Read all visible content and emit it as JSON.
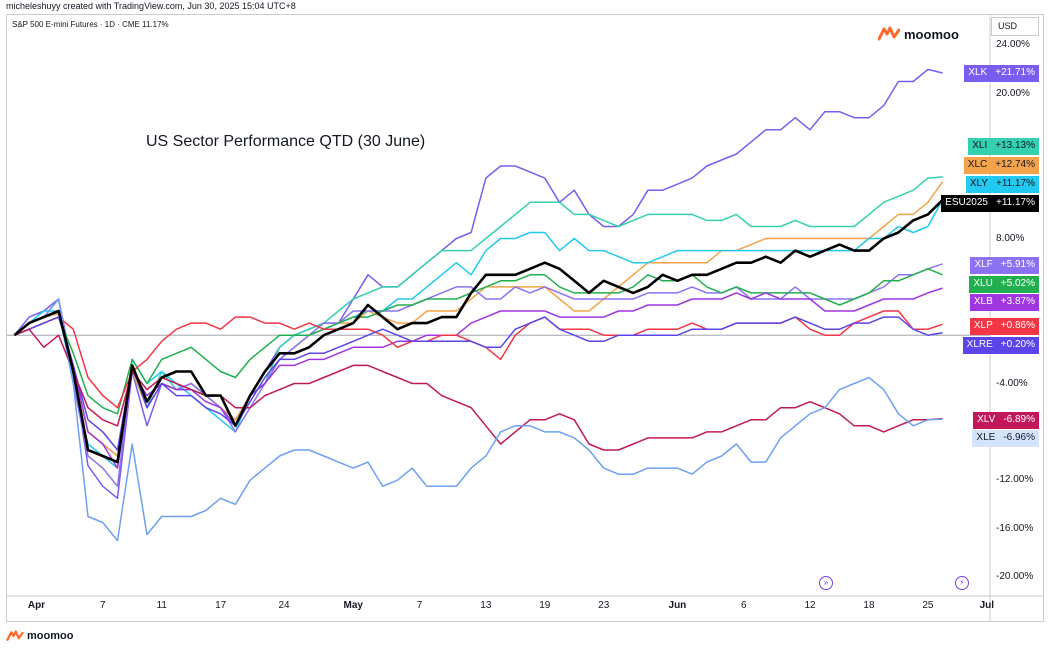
{
  "header": {
    "credit": "micheleshuyy created with TradingView.com, Jun 30, 2025 15:04 UTC+8",
    "symbol_info": "S&P 500 E-mini Futures · 1D · CME  11.17%",
    "currency": "USD"
  },
  "brand": {
    "name": "moomoo"
  },
  "icons": {
    "brand_logo": "moomoo-logo-icon",
    "replay": "replay-icon",
    "lightning": "lightning-icon"
  },
  "chart_data": {
    "type": "line",
    "title": "US Sector Performance QTD (30 June)",
    "ylabel": "",
    "xlabel": "",
    "ylim": [
      -21.5,
      26.5
    ],
    "xlim": [
      -0.5,
      63.5
    ],
    "baseline": 0,
    "y_ticks": [
      "24.00%",
      "20.00%",
      "8.00%",
      "-4.00%",
      "-12.00%",
      "-16.00%",
      "-20.00%"
    ],
    "y_tick_values": [
      24,
      20,
      8,
      -4,
      -12,
      -16,
      -20
    ],
    "x_tick_labels": [
      "Apr",
      "7",
      "11",
      "17",
      "24",
      "May",
      "7",
      "13",
      "19",
      "23",
      "Jun",
      "6",
      "12",
      "18",
      "25",
      "Jul"
    ],
    "x_tick_index": [
      1.5,
      6,
      10,
      14,
      18.3,
      23,
      27.5,
      32,
      36,
      40,
      45,
      49.5,
      54,
      58,
      62,
      66
    ],
    "x_tick_bold": [
      true,
      false,
      false,
      false,
      false,
      true,
      false,
      false,
      false,
      false,
      true,
      false,
      false,
      false,
      false,
      true
    ],
    "series": [
      {
        "name": "XLK",
        "color": "#7b5cf0",
        "label_color": "#7b5cf0",
        "value_label": "+21.71%",
        "label_text_color": "#ffffff",
        "values": [
          0,
          1.5,
          2,
          3,
          -3,
          -10.8,
          -12.5,
          -13.5,
          -3,
          -7.5,
          -4,
          -4.5,
          -4,
          -5,
          -6,
          -7.5,
          -5,
          -3,
          -1,
          0,
          0.5,
          1,
          1,
          3,
          5,
          4,
          4,
          5,
          6,
          7,
          8,
          8.5,
          13,
          14,
          14,
          13.5,
          13,
          11,
          12,
          10,
          9,
          9,
          10,
          12,
          12,
          12.5,
          13,
          14,
          14.5,
          15,
          16,
          17,
          17,
          18,
          17,
          18.5,
          18.5,
          18,
          18,
          19,
          21,
          21,
          22,
          21.7
        ]
      },
      {
        "name": "XLI",
        "color": "#33d1b0",
        "label_color": "#33d1b0",
        "value_label": "+13.13%",
        "label_text_color": "#131722",
        "values": [
          0,
          1,
          1.5,
          1.8,
          -3,
          -8,
          -9,
          -10,
          -3,
          -6,
          -3,
          -4.5,
          -4.5,
          -5,
          -6,
          -7,
          -5,
          -4,
          -1,
          0,
          0.5,
          1,
          2,
          3,
          3.5,
          4,
          4,
          5,
          6,
          7,
          7,
          7,
          8,
          9,
          10,
          11,
          11,
          11,
          10,
          10,
          9.5,
          9,
          9.5,
          10,
          10,
          10,
          10,
          9.5,
          9.5,
          10,
          9,
          9,
          9,
          9.5,
          9,
          9,
          9,
          9,
          10,
          11,
          11.5,
          12,
          13,
          13.1
        ]
      },
      {
        "name": "XLC",
        "color": "#f5a34a",
        "label_color": "#f5a34a",
        "value_label": "+12.74%",
        "label_text_color": "#131722",
        "values": [
          0,
          1,
          1.5,
          1.8,
          -3,
          -8,
          -9,
          -10,
          -3,
          -6,
          -4,
          -4.5,
          -4,
          -5,
          -6,
          -7,
          -5,
          -4,
          -2,
          -1,
          0,
          0.5,
          1,
          1,
          2,
          1.5,
          1,
          1,
          2,
          2,
          2,
          3,
          4,
          4,
          4,
          4,
          4,
          3,
          2,
          2,
          3,
          4,
          5,
          6,
          6,
          6,
          6,
          6,
          7,
          7,
          7.5,
          8,
          8,
          8,
          8,
          8,
          8,
          8,
          8,
          9,
          10,
          10,
          11,
          12.7
        ]
      },
      {
        "name": "XLY",
        "color": "#22c9f0",
        "label_color": "#22c9f0",
        "value_label": "+11.17%",
        "label_text_color": "#131722",
        "values": [
          0,
          1,
          2,
          2,
          -4,
          -9,
          -10,
          -11,
          -2,
          -4,
          -3,
          -4,
          -5,
          -6,
          -7,
          -8,
          -5,
          -4,
          -2,
          -1,
          0,
          0.5,
          1,
          1.5,
          2,
          2,
          3,
          3,
          4,
          5,
          6,
          5,
          7,
          8,
          8,
          8.5,
          8.5,
          7,
          8,
          7,
          7,
          6.5,
          6,
          6,
          6.5,
          7,
          7,
          7,
          7,
          7,
          7,
          7,
          7,
          7,
          7,
          7,
          7,
          7,
          8,
          8,
          9,
          8.5,
          9,
          11.2
        ]
      },
      {
        "name": "ESU2025",
        "color": "#000000",
        "label_color": "#000000",
        "value_label": "+11.17%",
        "label_text_color": "#ffffff",
        "values": [
          0,
          1,
          1.5,
          2,
          -3,
          -9.5,
          -10,
          -10.5,
          -2.5,
          -5.5,
          -3.5,
          -3,
          -3,
          -5,
          -5,
          -7.5,
          -5,
          -3,
          -1.5,
          -1.5,
          -1,
          0,
          0.5,
          1,
          2.5,
          1.5,
          0.5,
          1,
          1,
          1.5,
          1.5,
          3.5,
          5,
          5,
          5,
          5.5,
          6,
          5.5,
          4.5,
          3.5,
          4.5,
          4,
          3.5,
          4,
          5,
          4.5,
          5,
          5,
          5.5,
          6,
          6,
          6.5,
          6,
          7,
          6.5,
          7,
          7.5,
          7,
          7,
          8,
          8.5,
          9.5,
          10,
          11.2
        ]
      },
      {
        "name": "XLF",
        "color": "#8c72f2",
        "label_color": "#8c72f2",
        "value_label": "+5.91%",
        "label_text_color": "#ffffff",
        "values": [
          0,
          1,
          1.5,
          3,
          -4,
          -10,
          -11,
          -12.5,
          -2.5,
          -6,
          -4,
          -4.5,
          -4,
          -5,
          -6,
          -8,
          -6,
          -4,
          -2,
          -1,
          0,
          1,
          1,
          2,
          2,
          2,
          2,
          2.5,
          3,
          3.5,
          4,
          4,
          3,
          3,
          4,
          3.5,
          4,
          3.5,
          3,
          3,
          3,
          3,
          3,
          3.5,
          3.5,
          3.5,
          4,
          3.5,
          3.5,
          4,
          3,
          3,
          3,
          4,
          3,
          3,
          3,
          3,
          3.5,
          4,
          5,
          5,
          5.5,
          5.9
        ]
      },
      {
        "name": "XLU",
        "color": "#22b04e",
        "label_color": "#22b04e",
        "value_label": "+5.02%",
        "label_text_color": "#ffffff",
        "values": [
          0,
          0.5,
          1,
          1.5,
          -1.5,
          -5,
          -6,
          -6.5,
          -2,
          -4,
          -2,
          -1.5,
          -1,
          -2,
          -3,
          -3.5,
          -2,
          -1,
          0,
          0,
          0,
          0.5,
          1,
          1.5,
          1.5,
          2,
          2.5,
          2.5,
          3,
          3,
          3,
          3.5,
          4,
          4.5,
          4.5,
          5,
          5,
          4,
          3.5,
          3.5,
          3.5,
          3.5,
          4,
          5,
          4.5,
          4.5,
          5,
          4,
          3.5,
          4,
          3.5,
          3.5,
          3.5,
          3.5,
          3.5,
          3,
          2.5,
          3,
          3.5,
          4.5,
          4.5,
          5,
          5.5,
          5
        ]
      },
      {
        "name": "XLB",
        "color": "#9f36e0",
        "label_color": "#9f36e0",
        "value_label": "+3.87%",
        "label_text_color": "#ffffff",
        "values": [
          0,
          1,
          1.5,
          2,
          -2.5,
          -8,
          -9,
          -11,
          -3,
          -5,
          -4,
          -4.5,
          -4.5,
          -5.5,
          -6,
          -7.5,
          -5,
          -4,
          -2.5,
          -2.5,
          -2,
          -2,
          -1.5,
          -1,
          -1,
          -1,
          -0.5,
          -0.5,
          0,
          0,
          0,
          1,
          1.5,
          2,
          2,
          2,
          2,
          1.5,
          1.5,
          1.5,
          1.5,
          2,
          2,
          2.5,
          2.5,
          2.5,
          3,
          3,
          3,
          3.5,
          3,
          3.5,
          3,
          3,
          3,
          2,
          2,
          2,
          2.5,
          3,
          3,
          3,
          3.5,
          3.9
        ]
      },
      {
        "name": "XLP",
        "color": "#f23645",
        "label_color": "#f23645",
        "value_label": "+0.86%",
        "label_text_color": "#ffffff",
        "values": [
          0,
          0.5,
          1,
          1.5,
          0.5,
          -3.5,
          -5,
          -6,
          -3,
          -2,
          -0.5,
          0.5,
          1,
          1,
          0.5,
          1.5,
          1.5,
          1,
          1,
          0.5,
          1,
          0.5,
          0.5,
          0.5,
          0.5,
          0,
          -1,
          -0.5,
          -0.5,
          0,
          0,
          -0.5,
          -1,
          -2,
          0,
          1,
          1.5,
          0.5,
          0.5,
          0.5,
          0,
          0,
          0,
          0.5,
          0.5,
          0.5,
          1,
          0.5,
          0.5,
          1,
          1,
          1,
          1,
          1.5,
          0.5,
          0,
          0,
          1,
          1.5,
          2,
          2,
          0.5,
          0.5,
          0.9
        ]
      },
      {
        "name": "XLRE",
        "color": "#5c45e8",
        "label_color": "#5c45e8",
        "value_label": "+0.20%",
        "label_text_color": "#ffffff",
        "values": [
          0,
          0.5,
          1,
          1.5,
          -2.5,
          -7,
          -8,
          -9.5,
          -2.5,
          -6,
          -4,
          -5,
          -5,
          -6,
          -6.5,
          -7.5,
          -5.5,
          -3.5,
          -2,
          -2,
          -1.5,
          -1.5,
          -1,
          -0.5,
          0,
          0.5,
          0,
          -0.5,
          -0.5,
          -0.5,
          -0.5,
          -0.5,
          -1,
          -1,
          0.5,
          1,
          1.5,
          0.5,
          0,
          -0.5,
          -0.5,
          0,
          0,
          0,
          0,
          0,
          0.5,
          0.5,
          0.5,
          1,
          1,
          1,
          1,
          1.5,
          1,
          0.5,
          0.5,
          1,
          1,
          1.5,
          1.5,
          0.5,
          0,
          0.2
        ]
      },
      {
        "name": "XLV",
        "color": "#c2185b",
        "label_color": "#c2185b",
        "value_label": "-6.89%",
        "label_text_color": "#ffffff",
        "values": [
          0,
          0.5,
          -1,
          0,
          -3,
          -6,
          -7,
          -7.5,
          -3,
          -4.5,
          -3.5,
          -4,
          -4.5,
          -5,
          -5,
          -6,
          -6,
          -5,
          -4.5,
          -4,
          -4,
          -3.5,
          -3,
          -2.5,
          -2.5,
          -3,
          -3.5,
          -4,
          -4,
          -5,
          -5.5,
          -6,
          -7.5,
          -9,
          -8,
          -7,
          -7,
          -6.5,
          -7,
          -9,
          -9.5,
          -9.5,
          -9,
          -8.5,
          -8.5,
          -8.5,
          -8.5,
          -8,
          -8,
          -7.5,
          -7,
          -7,
          -6,
          -6,
          -5.5,
          -6,
          -6.5,
          -7.5,
          -7.5,
          -8,
          -7.5,
          -7,
          -7,
          -6.9
        ]
      },
      {
        "name": "XLE",
        "color": "#6ea0f2",
        "label_color": "#d4e4fd",
        "value_label": "-6.96%",
        "label_text_color": "#131722",
        "values": [
          0,
          1,
          1.5,
          3,
          -4,
          -15,
          -15.5,
          -17,
          -9,
          -16.5,
          -15,
          -15,
          -15,
          -14.5,
          -13.5,
          -14,
          -12,
          -11,
          -10,
          -9.5,
          -9.5,
          -10,
          -10.5,
          -11,
          -10.5,
          -12.5,
          -12,
          -11,
          -12.5,
          -12.5,
          -12.5,
          -11,
          -10,
          -8,
          -7.5,
          -7.5,
          -8,
          -8,
          -8.5,
          -9.5,
          -11,
          -11.5,
          -11.5,
          -11,
          -11,
          -11,
          -11.5,
          -10.5,
          -10,
          -9,
          -10.5,
          -10.5,
          -8.5,
          -7.5,
          -6.5,
          -6,
          -4.5,
          -4,
          -3.5,
          -4.5,
          -6.5,
          -7.5,
          -7,
          -6.96
        ]
      }
    ]
  }
}
